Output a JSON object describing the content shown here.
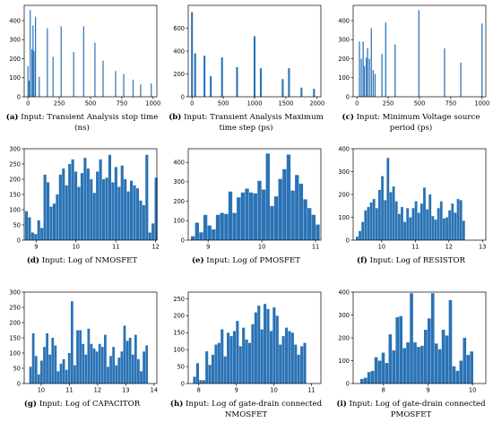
{
  "chart_data": [
    {
      "type": "histogram",
      "label": "(a)",
      "caption": "Input: Transient Analysis stop time (ns)",
      "xlim": [
        -30,
        1030
      ],
      "ylim": [
        0,
        480
      ],
      "xticks": [
        0,
        250,
        500,
        750,
        1000
      ],
      "yticks": [
        0,
        100,
        200,
        300,
        400
      ],
      "binwidth": 8,
      "bins": [
        [
          0,
          160
        ],
        [
          10,
          85
        ],
        [
          18,
          455
        ],
        [
          32,
          250
        ],
        [
          40,
          375
        ],
        [
          48,
          240
        ],
        [
          60,
          420
        ],
        [
          90,
          105
        ],
        [
          155,
          360
        ],
        [
          200,
          210
        ],
        [
          265,
          370
        ],
        [
          365,
          235
        ],
        [
          445,
          370
        ],
        [
          535,
          285
        ],
        [
          600,
          190
        ],
        [
          700,
          135
        ],
        [
          765,
          120
        ],
        [
          840,
          90
        ],
        [
          900,
          65
        ],
        [
          985,
          70
        ]
      ]
    },
    {
      "type": "histogram",
      "label": "(b)",
      "caption": "Input: Transient Analysis Maximum time step (ps)",
      "xlim": [
        -60,
        2060
      ],
      "ylim": [
        0,
        800
      ],
      "xticks": [
        0,
        500,
        1000,
        1500,
        2000
      ],
      "yticks": [
        0,
        200,
        400,
        600
      ],
      "binwidth": 30,
      "bins": [
        [
          0,
          740
        ],
        [
          50,
          380
        ],
        [
          200,
          360
        ],
        [
          300,
          180
        ],
        [
          480,
          345
        ],
        [
          720,
          260
        ],
        [
          1000,
          530
        ],
        [
          1100,
          250
        ],
        [
          1450,
          155
        ],
        [
          1550,
          250
        ],
        [
          1750,
          80
        ],
        [
          1950,
          70
        ]
      ]
    },
    {
      "type": "histogram",
      "label": "(c)",
      "caption": "Input: Minimum Voltage source period (ps)",
      "xlim": [
        -30,
        1030
      ],
      "ylim": [
        0,
        480
      ],
      "xticks": [
        0,
        250,
        500,
        750,
        1000
      ],
      "yticks": [
        0,
        100,
        200,
        300,
        400
      ],
      "binwidth": 9,
      "bins": [
        [
          20,
          290
        ],
        [
          35,
          200
        ],
        [
          50,
          290
        ],
        [
          60,
          160
        ],
        [
          75,
          205
        ],
        [
          85,
          255
        ],
        [
          100,
          200
        ],
        [
          115,
          360
        ],
        [
          130,
          140
        ],
        [
          145,
          120
        ],
        [
          200,
          225
        ],
        [
          230,
          390
        ],
        [
          305,
          275
        ],
        [
          495,
          455
        ],
        [
          700,
          255
        ],
        [
          830,
          180
        ],
        [
          1000,
          385
        ]
      ]
    },
    {
      "type": "histogram",
      "label": "(d)",
      "caption": "Input: Log of NMOSFET",
      "xlim": [
        8.7,
        12.03
      ],
      "ylim": [
        0,
        300
      ],
      "xticks": [
        9,
        10,
        11,
        12
      ],
      "yticks": [
        0,
        50,
        100,
        150,
        200,
        250,
        300
      ],
      "first_bin": 8.72,
      "binwidth": 0.0775,
      "counts": [
        95,
        75,
        25,
        20,
        65,
        40,
        215,
        190,
        110,
        120,
        150,
        215,
        235,
        180,
        250,
        265,
        225,
        175,
        220,
        270,
        235,
        200,
        155,
        225,
        265,
        200,
        205,
        280,
        190,
        240,
        175,
        245,
        200,
        160,
        195,
        180,
        170,
        130,
        115,
        280,
        25,
        55,
        205
      ]
    },
    {
      "type": "histogram",
      "label": "(e)",
      "caption": "Input: Log of PMOSFET",
      "xlim": [
        8.63,
        11.1
      ],
      "ylim": [
        0,
        470
      ],
      "xticks": [
        9,
        10,
        11
      ],
      "yticks": [
        0,
        100,
        200,
        300,
        400
      ],
      "first_bin": 8.68,
      "binwidth": 0.0775,
      "counts": [
        20,
        90,
        40,
        130,
        75,
        55,
        130,
        140,
        135,
        250,
        140,
        220,
        245,
        265,
        245,
        240,
        305,
        260,
        445,
        175,
        225,
        315,
        365,
        440,
        255,
        335,
        290,
        210,
        165,
        130,
        80
      ]
    },
    {
      "type": "histogram",
      "label": "(f)",
      "caption": "Input: Log of RESISTOR",
      "xlim": [
        9.15,
        13.1
      ],
      "ylim": [
        0,
        400
      ],
      "xticks": [
        10,
        11,
        12,
        13
      ],
      "yticks": [
        0,
        100,
        200,
        300,
        400
      ],
      "first_bin": 9.23,
      "binwidth": 0.0835,
      "counts": [
        15,
        40,
        80,
        130,
        145,
        165,
        180,
        140,
        220,
        280,
        175,
        360,
        210,
        235,
        170,
        115,
        145,
        80,
        140,
        100,
        140,
        170,
        120,
        160,
        230,
        135,
        200,
        105,
        90,
        140,
        170,
        95,
        100,
        130,
        160,
        120,
        180,
        175,
        85
      ]
    },
    {
      "type": "histogram",
      "label": "(g)",
      "caption": "Input: Log of CAPACITOR",
      "xlim": [
        9.4,
        14.1
      ],
      "ylim": [
        0,
        300
      ],
      "xticks": [
        10,
        11,
        12,
        13,
        14
      ],
      "yticks": [
        0,
        50,
        100,
        150,
        200,
        250,
        300
      ],
      "first_bin": 9.58,
      "binwidth": 0.098,
      "counts": [
        55,
        165,
        90,
        30,
        75,
        120,
        165,
        95,
        150,
        125,
        40,
        65,
        80,
        45,
        100,
        270,
        60,
        175,
        175,
        130,
        95,
        180,
        130,
        115,
        105,
        130,
        120,
        160,
        55,
        90,
        120,
        60,
        85,
        105,
        190,
        140,
        150,
        95,
        160,
        80,
        40,
        105,
        125
      ]
    },
    {
      "type": "histogram",
      "label": "(h)",
      "caption": "Input: Log of gate-drain connected NMOSFET",
      "xlim": [
        7.72,
        11.25
      ],
      "ylim": [
        0,
        270
      ],
      "xticks": [
        8,
        9,
        10,
        11
      ],
      "yticks": [
        0,
        50,
        100,
        150,
        200,
        250
      ],
      "first_bin": 7.85,
      "binwidth": 0.0815,
      "counts": [
        20,
        60,
        10,
        10,
        95,
        55,
        85,
        115,
        120,
        160,
        80,
        150,
        140,
        155,
        185,
        110,
        165,
        130,
        120,
        175,
        210,
        230,
        160,
        235,
        220,
        155,
        225,
        200,
        115,
        140,
        165,
        155,
        150,
        115,
        85,
        110,
        120
      ]
    },
    {
      "type": "histogram",
      "label": "(i)",
      "caption": "Input: Log of gate-drain connected PMOSFET",
      "xlim": [
        7.32,
        10.3
      ],
      "ylim": [
        0,
        400
      ],
      "xticks": [
        8,
        9,
        10
      ],
      "yticks": [
        0,
        100,
        200,
        300,
        400
      ],
      "first_bin": 7.48,
      "binwidth": 0.0795,
      "counts": [
        20,
        25,
        50,
        55,
        115,
        100,
        135,
        90,
        215,
        145,
        290,
        295,
        155,
        180,
        395,
        180,
        160,
        165,
        235,
        285,
        395,
        175,
        150,
        235,
        210,
        365,
        75,
        55,
        100,
        200,
        125,
        140
      ]
    }
  ]
}
